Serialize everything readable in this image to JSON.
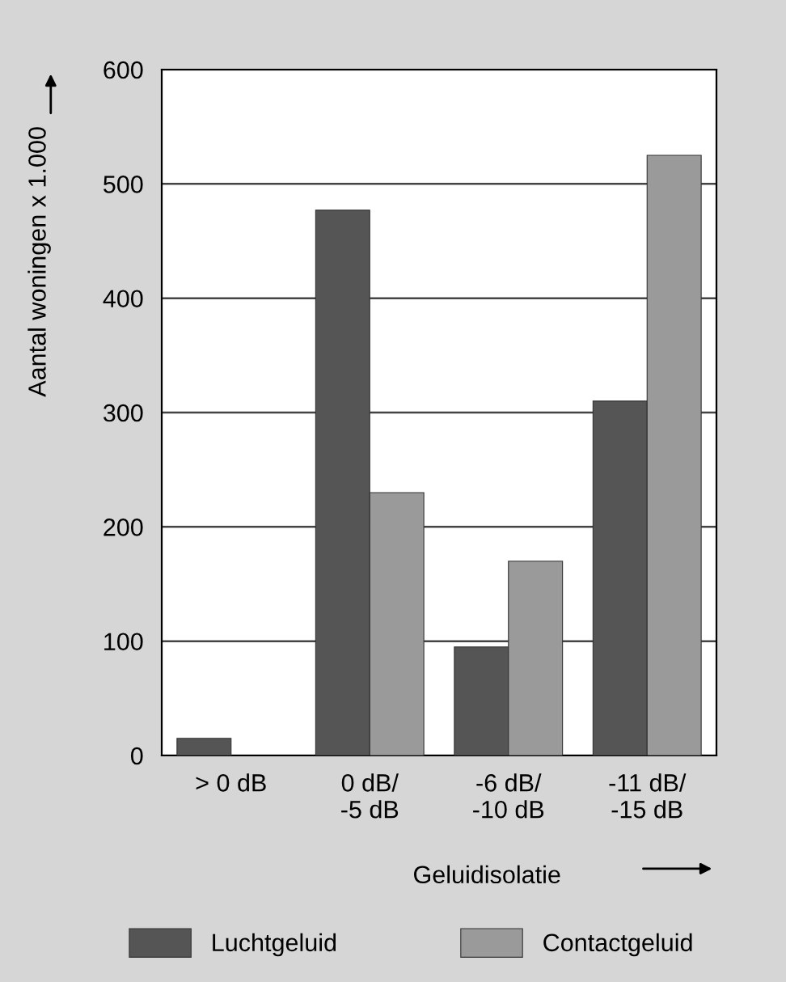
{
  "chart_data": {
    "type": "bar",
    "categories": [
      "> 0 dB",
      "0 dB/\n-5 dB",
      "-6 dB/\n-10 dB",
      "-11 dB/\n-15 dB"
    ],
    "series": [
      {
        "name": "Luchtgeluid",
        "color": "#555555",
        "values": [
          15,
          477,
          95,
          310
        ]
      },
      {
        "name": "Contactgeluid",
        "color": "#9a9a9a",
        "values": [
          null,
          230,
          170,
          525
        ]
      }
    ],
    "xlabel": "Geluidisolatie",
    "ylabel": "Aantal woningen x 1.000",
    "ylim": [
      0,
      600
    ],
    "yticks": [
      0,
      100,
      200,
      300,
      400,
      500,
      600
    ],
    "grid": "y",
    "legend": "bottom"
  }
}
